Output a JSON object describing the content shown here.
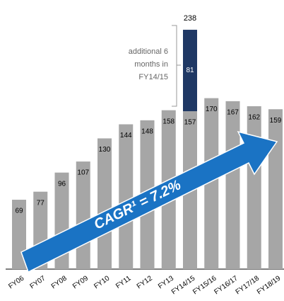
{
  "chart_data": {
    "type": "bar",
    "categories": [
      "FY06",
      "FY07",
      "FY08",
      "FY09",
      "FY10",
      "FY11",
      "FY12",
      "FY13",
      "FY14/15",
      "FY15/16",
      "FY16/17",
      "FY17/18",
      "FY18/19"
    ],
    "series": [
      {
        "color": "#a6a6a6",
        "values": [
          69,
          77,
          96,
          107,
          130,
          144,
          148,
          158,
          157,
          170,
          167,
          162,
          159
        ]
      },
      {
        "color": "#1f3864",
        "values": [
          null,
          null,
          null,
          null,
          null,
          null,
          null,
          null,
          81,
          null,
          null,
          null,
          null
        ]
      }
    ],
    "totals": [
      null,
      null,
      null,
      null,
      null,
      null,
      null,
      null,
      238,
      null,
      null,
      null,
      null
    ],
    "annotation": "additional 6 months in FY14/15",
    "cagr_label": "CAGR¹ = 7.2%"
  }
}
